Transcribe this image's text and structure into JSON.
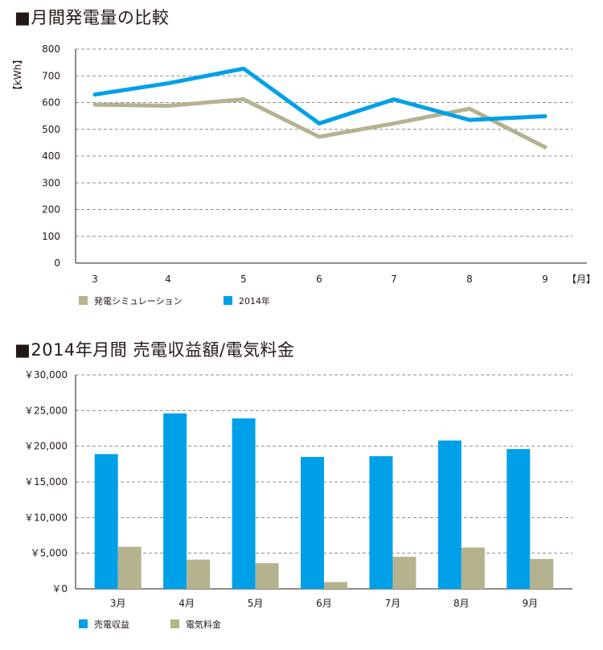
{
  "titles": {
    "chart1": "■月間発電量の比較",
    "chart2": "■2014年月間 売電収益額/電気料金"
  },
  "colors": {
    "blue": "#00a0e9",
    "khaki": "#b5b28f",
    "grid": "#8c8c8c",
    "axis": "#231815"
  },
  "chart_data": [
    {
      "type": "line",
      "title": "■月間発電量の比較",
      "ylabel": "【kWh】",
      "xlabel_unit": "【月】",
      "x": [
        "3",
        "4",
        "5",
        "6",
        "7",
        "8",
        "9"
      ],
      "ylim": [
        0,
        800
      ],
      "yticks": [
        "800",
        "700",
        "600",
        "500",
        "400",
        "300",
        "200",
        "100",
        "0"
      ],
      "grid": true,
      "legend_position": "bottom-left",
      "series": [
        {
          "name": "発電シミュレーション",
          "color": "#b5b28f",
          "values": [
            592,
            588,
            612,
            472,
            522,
            577,
            433
          ]
        },
        {
          "name": "2014年",
          "color": "#00a0e9",
          "values": [
            630,
            672,
            727,
            522,
            612,
            535,
            549
          ]
        }
      ]
    },
    {
      "type": "bar",
      "title": "■2014年月間 売電収益額/電気料金",
      "categories": [
        "3月",
        "4月",
        "5月",
        "6月",
        "7月",
        "8月",
        "9月"
      ],
      "ylim": [
        0,
        30000
      ],
      "yticks": [
        "￥30,000",
        "￥25,000",
        "￥20,000",
        "￥15,000",
        "￥10,000",
        "￥5,000",
        "￥0"
      ],
      "grid": true,
      "legend_position": "bottom-left",
      "series": [
        {
          "name": "売電収益",
          "color": "#00a0e9",
          "values": [
            18900,
            24600,
            23900,
            18500,
            18600,
            20800,
            19600
          ]
        },
        {
          "name": "電気料金",
          "color": "#b5b28f",
          "values": [
            5900,
            4100,
            3600,
            950,
            4500,
            5800,
            4200
          ]
        }
      ]
    }
  ]
}
